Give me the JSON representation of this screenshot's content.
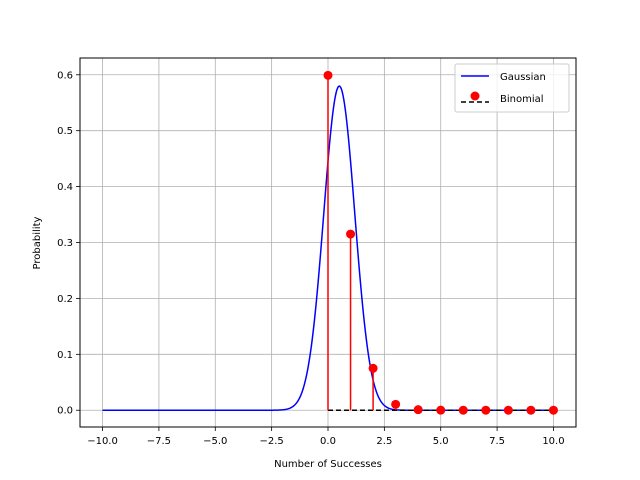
{
  "chart_data": {
    "type": "line",
    "title": "",
    "xlabel": "Number of Successes",
    "ylabel": "Probability",
    "xlim": [
      -11,
      11
    ],
    "ylim": [
      -0.03,
      0.63
    ],
    "x_ticks": [
      -10,
      -7.5,
      -5,
      -2.5,
      0,
      2.5,
      5,
      7.5,
      10
    ],
    "x_tick_labels": [
      "−10.0",
      "−7.5",
      "−5.0",
      "−2.5",
      "0.0",
      "2.5",
      "5.0",
      "7.5",
      "10.0"
    ],
    "y_ticks": [
      0,
      0.1,
      0.2,
      0.3,
      0.4,
      0.5,
      0.6
    ],
    "y_tick_labels": [
      "0.0",
      "0.1",
      "0.2",
      "0.3",
      "0.4",
      "0.5",
      "0.6"
    ],
    "grid": true,
    "legend_position": "top-right",
    "series": [
      {
        "name": "Gaussian",
        "type": "line",
        "color": "#0000ff",
        "mean": 0.5,
        "std": 0.688,
        "x_range": [
          -10,
          10
        ]
      },
      {
        "name": "Binomial",
        "type": "stem",
        "marker_color": "#ff0000",
        "stem_color": "#ff0000",
        "baseline_color": "#000000",
        "x": [
          0,
          1,
          2,
          3,
          4,
          5,
          6,
          7,
          8,
          9,
          10
        ],
        "y": [
          0.599,
          0.315,
          0.075,
          0.0105,
          0.001,
          0.0001,
          0,
          0,
          0,
          0,
          0
        ]
      }
    ]
  }
}
